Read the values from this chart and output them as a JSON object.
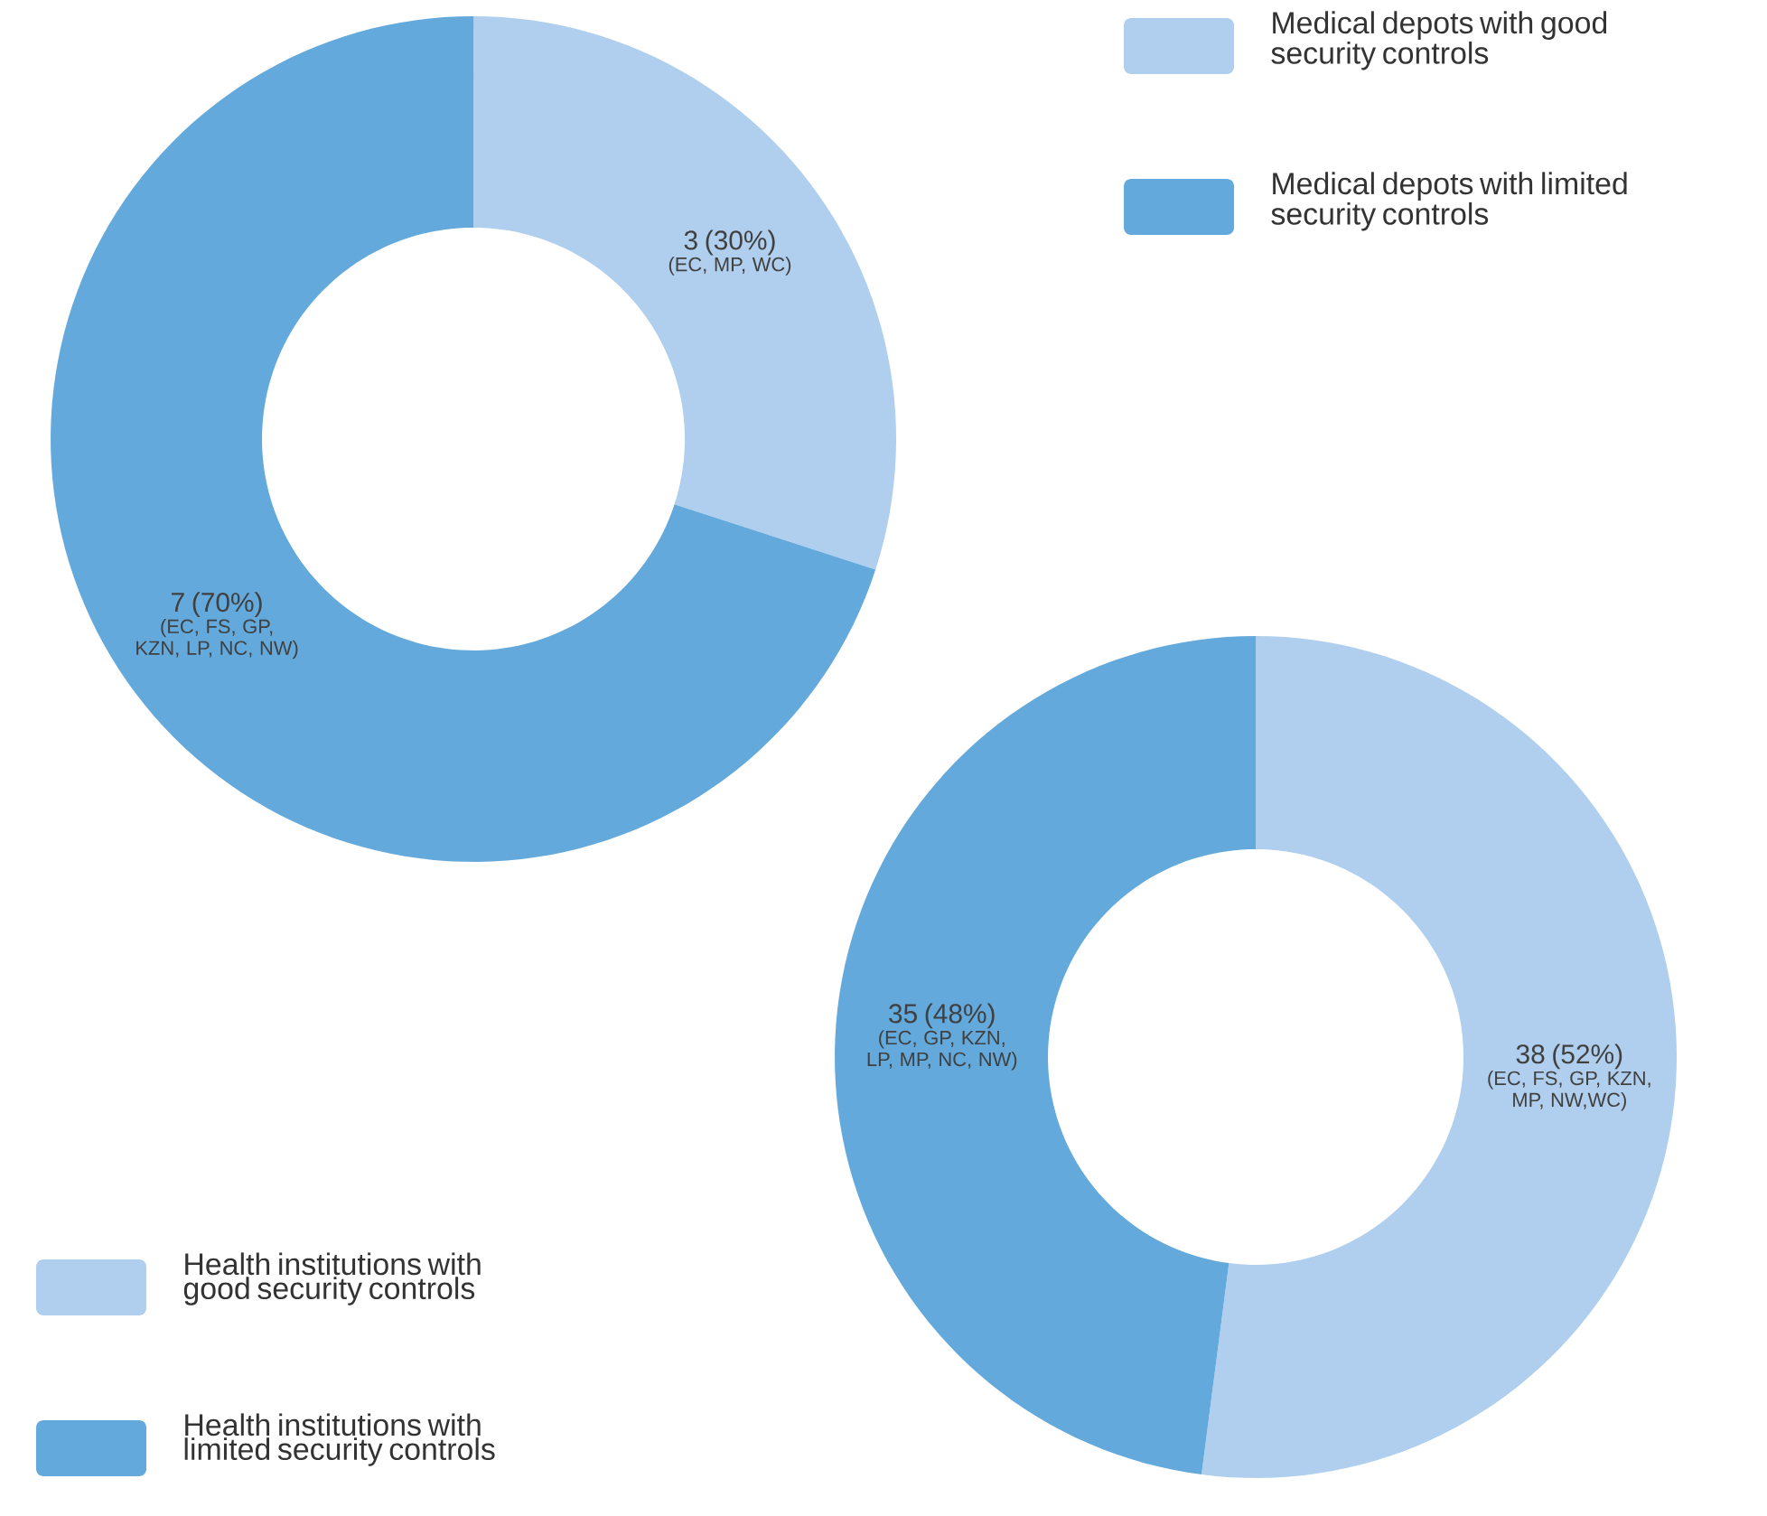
{
  "chart_data": [
    {
      "type": "donut",
      "categories": [
        "Medical depots with good security controls",
        "Medical depots with limited security controls"
      ],
      "values": [
        3,
        7
      ],
      "colors": [
        "#b0cfee",
        "#63a9dc"
      ],
      "value_labels": [
        "3 (30%)",
        "7 (70%)"
      ],
      "annotations": [
        "(EC, MP, WC)",
        "(EC, FS, GP, KZN, LP, NC, NW)"
      ],
      "legend": "top right"
    },
    {
      "type": "donut",
      "categories": [
        "Health institutions with good security controls",
        "Health institutions with limited security controls"
      ],
      "values": [
        38,
        35
      ],
      "colors": [
        "#b0cfee",
        "#63a9dc"
      ],
      "value_labels": [
        "38 (52%)",
        "35 (48%)"
      ],
      "annotations": [
        "(EC, FS, GP, KZN, MP, NW,WC)",
        "(EC, GP, KZN, LP, MP, NC, NW)"
      ],
      "legend": "bottom left"
    }
  ]
}
